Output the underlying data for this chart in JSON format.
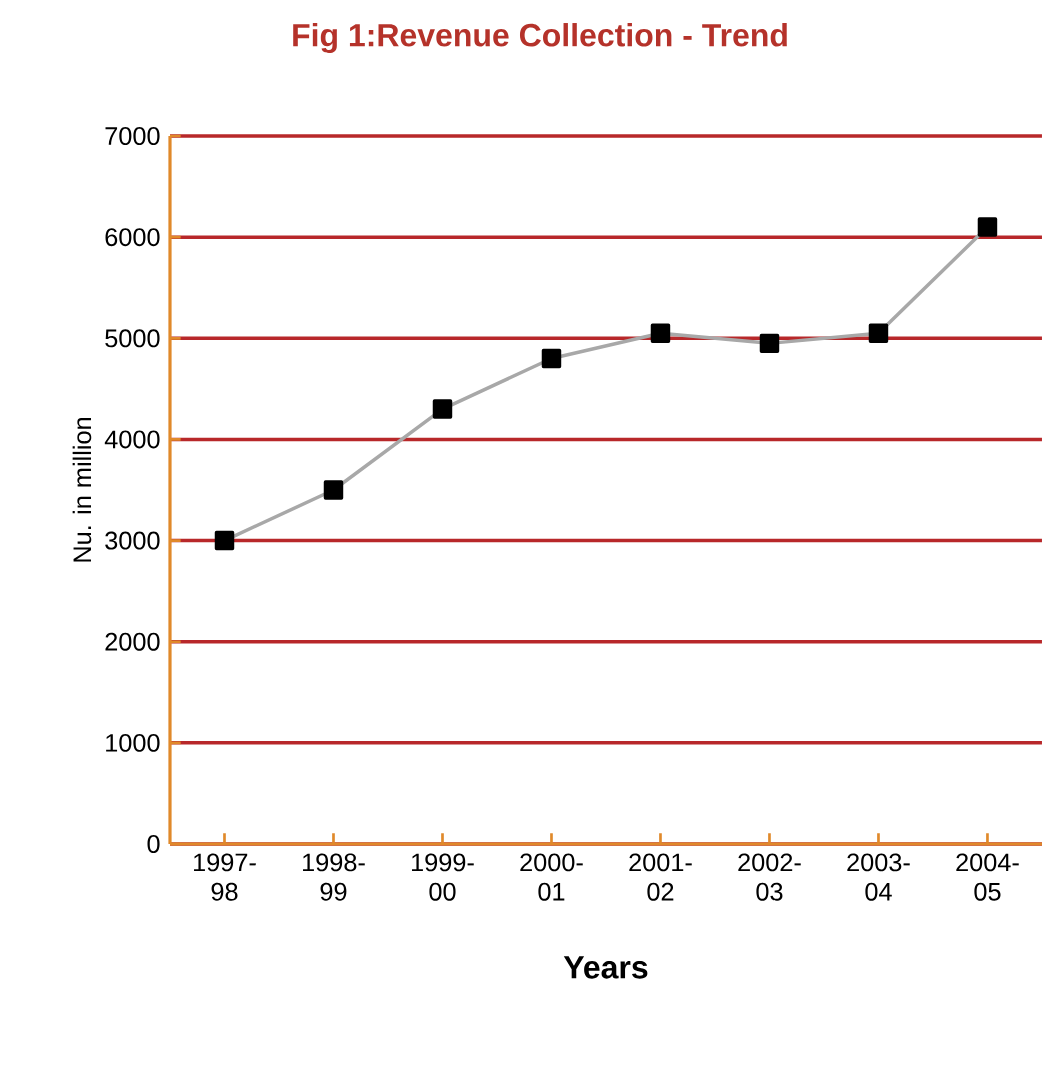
{
  "chart_data": {
    "type": "line",
    "title": "Fig 1:Revenue Collection - Trend",
    "xlabel": "Years",
    "ylabel": "Nu. in million",
    "categories": [
      "1997-98",
      "1998-99",
      "1999-00",
      "2000-01",
      "2001-02",
      "2002-03",
      "2003-04",
      "2004-05"
    ],
    "series": [
      {
        "color": "#a8a8a8",
        "values": [
          3000,
          3500,
          4300,
          4800,
          5050,
          4950,
          5050,
          6100
        ]
      }
    ],
    "ylim": [
      0,
      7000
    ],
    "yticks": [
      0,
      1000,
      2000,
      3000,
      4000,
      5000,
      6000,
      7000
    ],
    "grid": "y",
    "marker": "square",
    "line_style": "solid"
  }
}
